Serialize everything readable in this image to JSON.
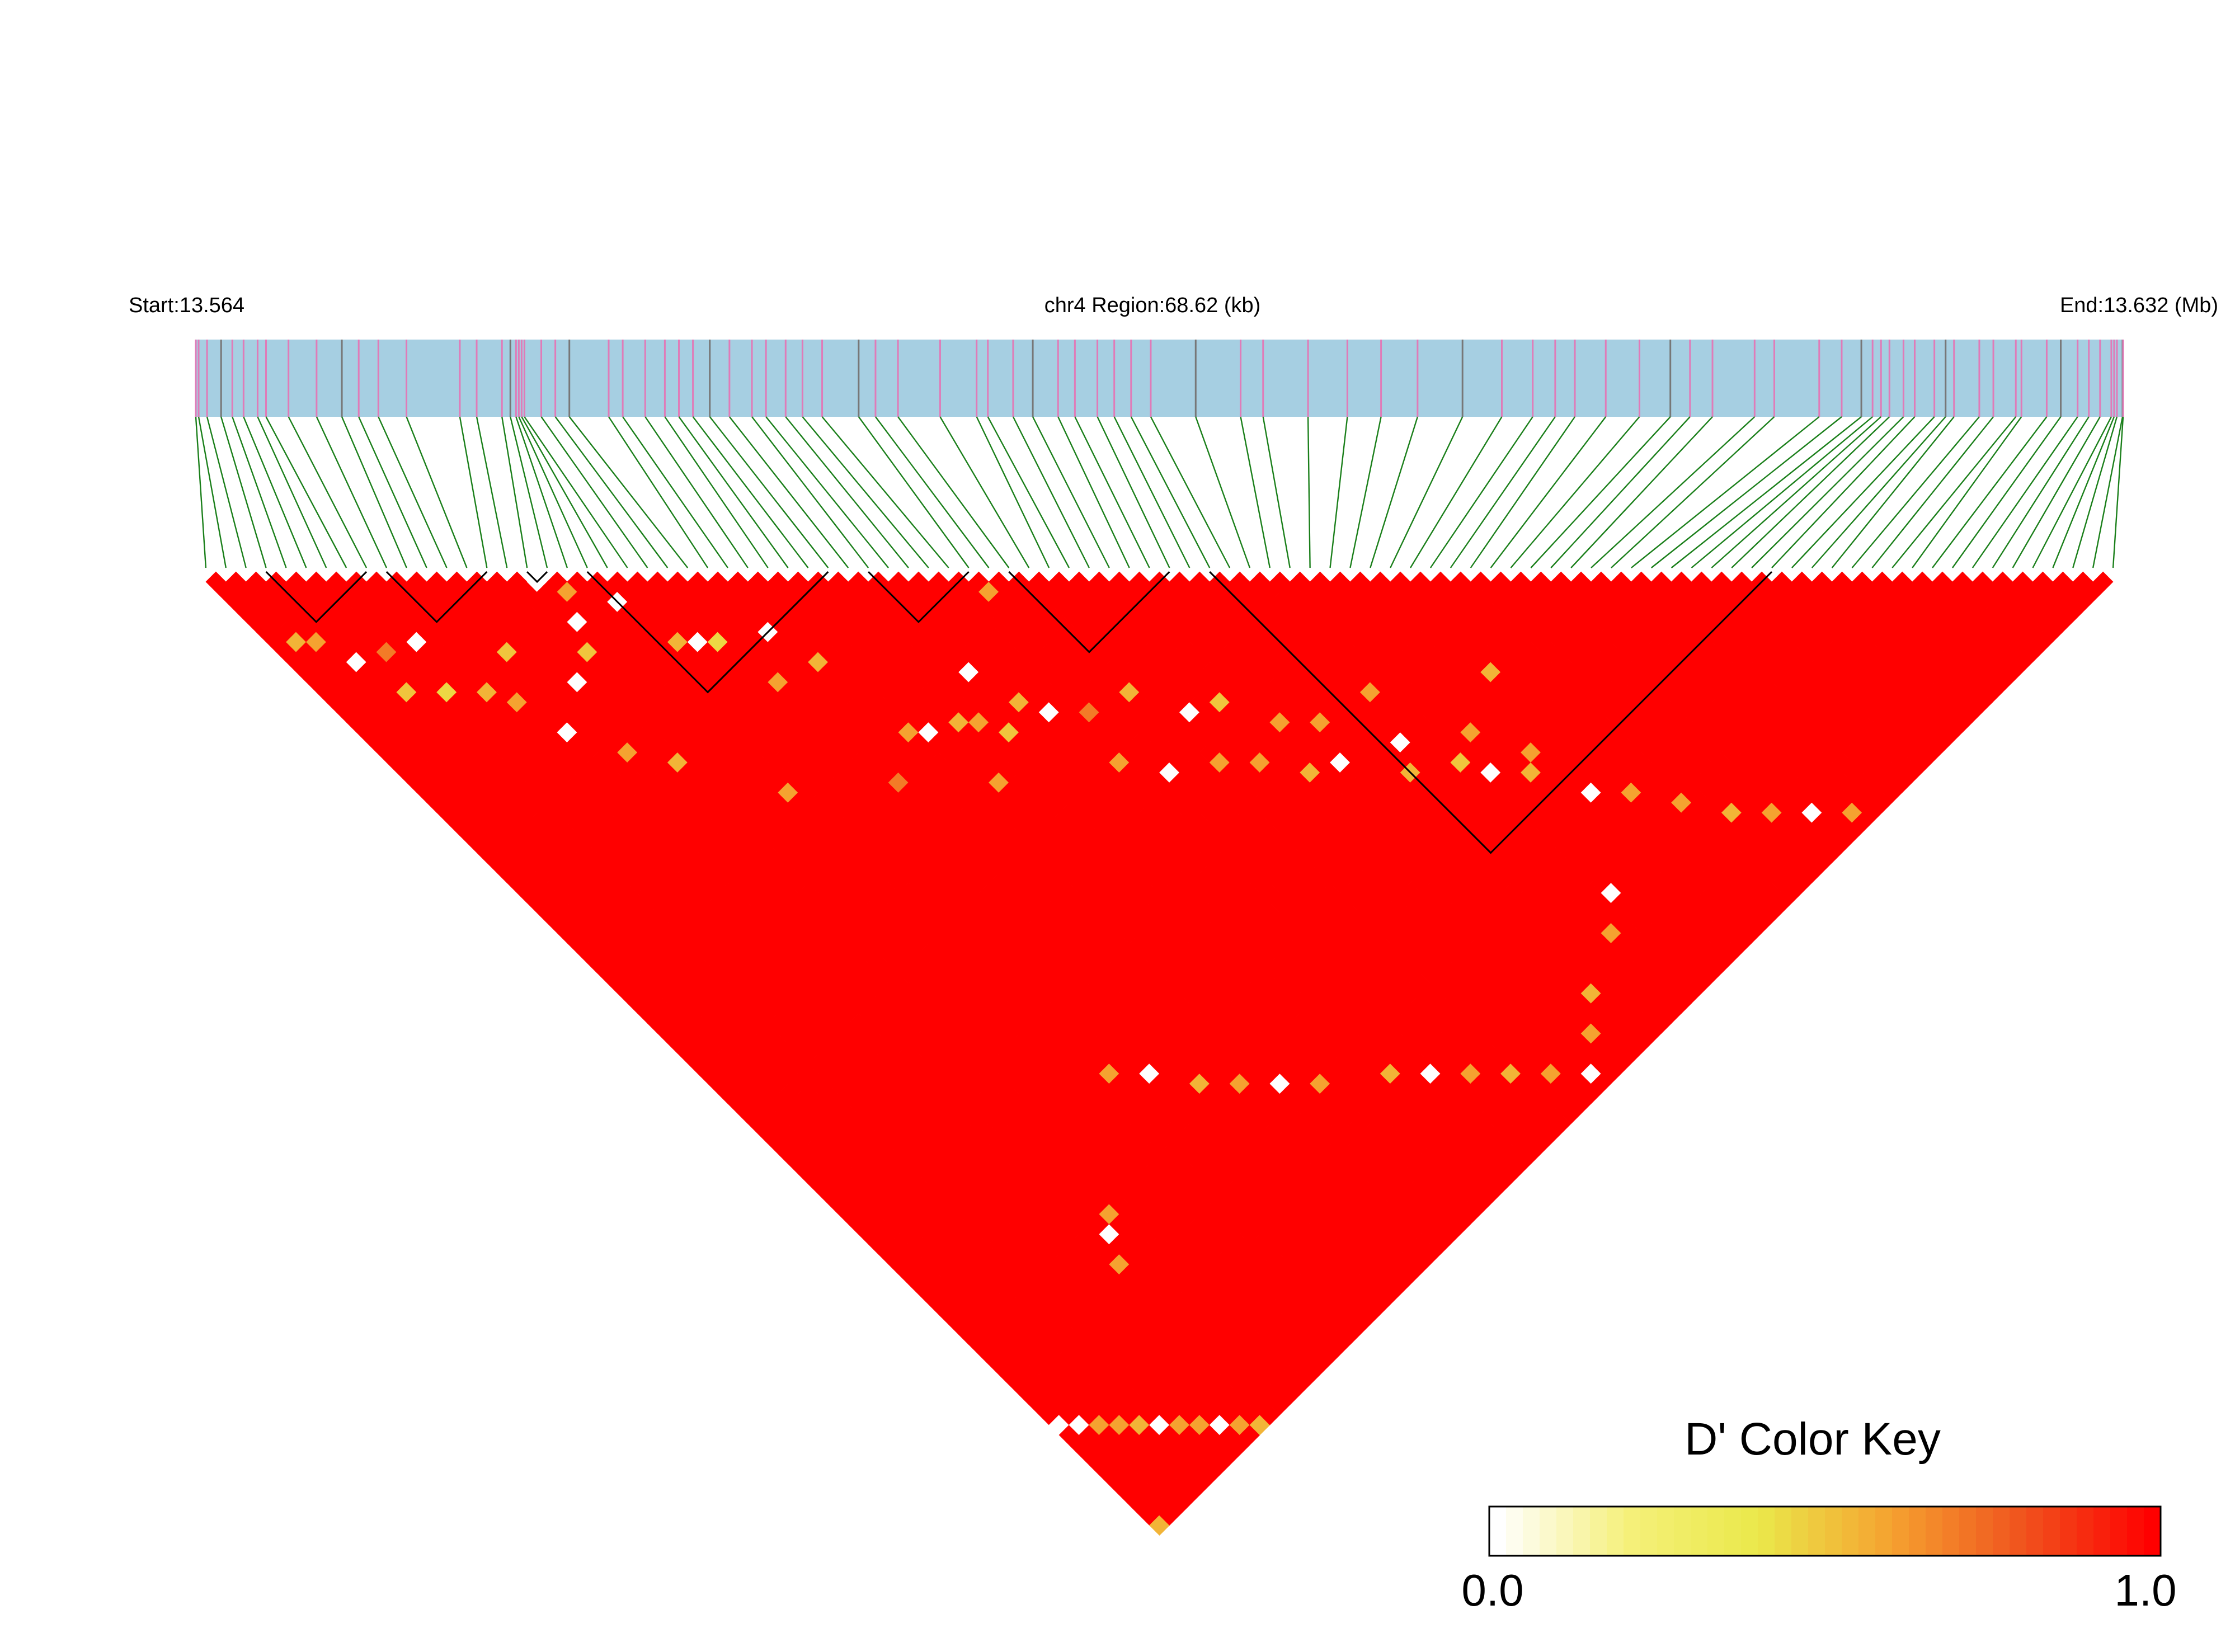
{
  "chart_data": {
    "type": "heatmap",
    "title": "",
    "header": {
      "start_label": "Start:13.564",
      "region_label": "chr4 Region:68.62 (kb)",
      "end_label": "End:13.632 (Mb)",
      "start_mb": 13.564,
      "end_mb": 13.632,
      "region_kb": 68.62,
      "chromosome": "chr4"
    },
    "snp_count": 96,
    "snp_positions_kb": [
      0.0,
      0.1,
      0.4,
      0.9,
      1.3,
      1.7,
      2.2,
      2.5,
      3.3,
      4.3,
      5.2,
      5.8,
      6.5,
      7.5,
      9.4,
      10.0,
      10.9,
      11.2,
      11.4,
      11.5,
      11.6,
      11.7,
      12.3,
      12.8,
      13.3,
      14.7,
      15.2,
      16.0,
      16.7,
      17.2,
      17.7,
      18.3,
      19.0,
      19.8,
      20.3,
      21.0,
      21.6,
      22.3,
      23.6,
      24.2,
      25.0,
      26.5,
      27.8,
      28.2,
      29.1,
      29.8,
      30.7,
      31.3,
      32.1,
      32.7,
      33.3,
      34.0,
      35.6,
      37.2,
      38.0,
      39.6,
      41.0,
      42.2,
      43.5,
      45.1,
      46.5,
      47.6,
      48.4,
      49.1,
      50.2,
      51.4,
      52.5,
      53.2,
      54.0,
      55.5,
      56.2,
      57.8,
      58.6,
      59.3,
      59.7,
      60.0,
      60.3,
      60.8,
      61.2,
      61.9,
      62.3,
      62.6,
      63.5,
      64.0,
      64.8,
      65.0,
      65.9,
      66.4,
      67.0,
      67.4,
      67.8,
      68.2,
      68.3,
      68.4,
      68.6,
      68.62
    ],
    "haplotype_blocks": [
      {
        "first_snp": 3,
        "last_snp": 8
      },
      {
        "first_snp": 9,
        "last_snp": 14
      },
      {
        "first_snp": 16,
        "last_snp": 17
      },
      {
        "first_snp": 19,
        "last_snp": 31
      },
      {
        "first_snp": 33,
        "last_snp": 38
      },
      {
        "first_snp": 40,
        "last_snp": 48
      },
      {
        "first_snp": 50,
        "last_snp": 78
      }
    ],
    "value_range": [
      0.0,
      1.0
    ],
    "dominant_value": 1.0,
    "low_ld_pairs": [
      [
        1,
        8,
        0.55
      ],
      [
        2,
        9,
        0.6
      ],
      [
        3,
        12,
        0.0
      ],
      [
        4,
        16,
        0.5
      ],
      [
        5,
        13,
        0.7
      ],
      [
        6,
        18,
        0.45
      ],
      [
        7,
        14,
        0.0
      ],
      [
        8,
        20,
        0.55
      ],
      [
        9,
        22,
        0.6
      ],
      [
        10,
        26,
        0.0
      ],
      [
        11,
        19,
        0.5
      ],
      [
        12,
        30,
        0.6
      ],
      [
        13,
        24,
        0.0
      ],
      [
        14,
        33,
        0.55
      ],
      [
        15,
        23,
        0.5
      ],
      [
        16,
        17,
        0.0
      ],
      [
        16,
        21,
        0.0
      ],
      [
        17,
        19,
        0.6
      ],
      [
        18,
        40,
        0.6
      ],
      [
        19,
        22,
        0.0
      ],
      [
        20,
        27,
        0.55
      ],
      [
        21,
        28,
        0.0
      ],
      [
        22,
        29,
        0.45
      ],
      [
        23,
        34,
        0.6
      ],
      [
        24,
        45,
        0.7
      ],
      [
        25,
        31,
        0.0
      ],
      [
        26,
        35,
        0.55
      ],
      [
        27,
        43,
        0.6
      ],
      [
        28,
        44,
        0.0
      ],
      [
        29,
        50,
        0.6
      ],
      [
        30,
        45,
        0.55
      ],
      [
        31,
        46,
        0.6
      ],
      [
        32,
        48,
        0.5
      ],
      [
        33,
        43,
        0.0
      ],
      [
        34,
        47,
        0.55
      ],
      [
        35,
        49,
        0.0
      ],
      [
        36,
        55,
        0.6
      ],
      [
        37,
        51,
        0.7
      ],
      [
        38,
        40,
        0.6
      ],
      [
        38,
        58,
        0.0
      ],
      [
        40,
        52,
        0.55
      ],
      [
        41,
        60,
        0.6
      ],
      [
        42,
        56,
        0.0
      ],
      [
        43,
        62,
        0.6
      ],
      [
        44,
        57,
        0.5
      ],
      [
        45,
        65,
        0.55
      ],
      [
        46,
        61,
        0.6
      ],
      [
        47,
        66,
        0.0
      ],
      [
        48,
        63,
        0.6
      ],
      [
        50,
        70,
        0.55
      ],
      [
        51,
        68,
        0.0
      ],
      [
        52,
        64,
        0.6
      ],
      [
        53,
        72,
        0.5
      ],
      [
        54,
        74,
        0.0
      ],
      [
        55,
        71,
        0.6
      ],
      [
        56,
        76,
        0.55
      ],
      [
        57,
        75,
        0.6
      ],
      [
        58,
        80,
        0.0
      ],
      [
        59,
        69,
        0.55
      ],
      [
        60,
        82,
        0.6
      ],
      [
        62,
        85,
        0.6
      ],
      [
        64,
        88,
        0.55
      ],
      [
        66,
        90,
        0.6
      ],
      [
        68,
        92,
        0.0
      ],
      [
        70,
        94,
        0.6
      ],
      [
        0,
        85,
        0.0
      ],
      [
        1,
        86,
        0.0
      ],
      [
        2,
        87,
        0.6
      ],
      [
        3,
        88,
        0.6
      ],
      [
        4,
        89,
        0.55
      ],
      [
        5,
        90,
        0.0
      ],
      [
        6,
        91,
        0.6
      ],
      [
        0,
        95,
        0.55
      ],
      [
        7,
        92,
        0.6
      ],
      [
        8,
        93,
        0.0
      ],
      [
        9,
        94,
        0.6
      ],
      [
        10,
        95,
        0.55
      ],
      [
        11,
        80,
        0.6
      ],
      [
        12,
        78,
        0.0
      ],
      [
        13,
        77,
        0.6
      ],
      [
        20,
        70,
        0.6
      ],
      [
        22,
        72,
        0.0
      ],
      [
        24,
        75,
        0.55
      ],
      [
        26,
        77,
        0.6
      ],
      [
        28,
        79,
        0.0
      ],
      [
        30,
        81,
        0.6
      ],
      [
        34,
        84,
        0.55
      ],
      [
        36,
        86,
        0.0
      ],
      [
        38,
        88,
        0.6
      ],
      [
        40,
        90,
        0.55
      ],
      [
        42,
        92,
        0.6
      ],
      [
        44,
        94,
        0.0
      ],
      [
        46,
        92,
        0.6
      ],
      [
        48,
        90,
        0.55
      ],
      [
        52,
        88,
        0.6
      ],
      [
        54,
        86,
        0.0
      ]
    ],
    "color_key": {
      "title": "D' Color Key",
      "min_label": "0.0",
      "max_label": "1.0",
      "stops": [
        "#ffffff",
        "#f5f07a",
        "#eae84a",
        "#f5a230",
        "#f0541e",
        "#ff0000"
      ]
    }
  },
  "colors": {
    "track": "#a6cfe2",
    "tick_pink": "#e07bb8",
    "tick_gray": "#777777",
    "connector": "#1a7f1a",
    "high_ld": "#ff0000",
    "block_outline": "#000000"
  }
}
